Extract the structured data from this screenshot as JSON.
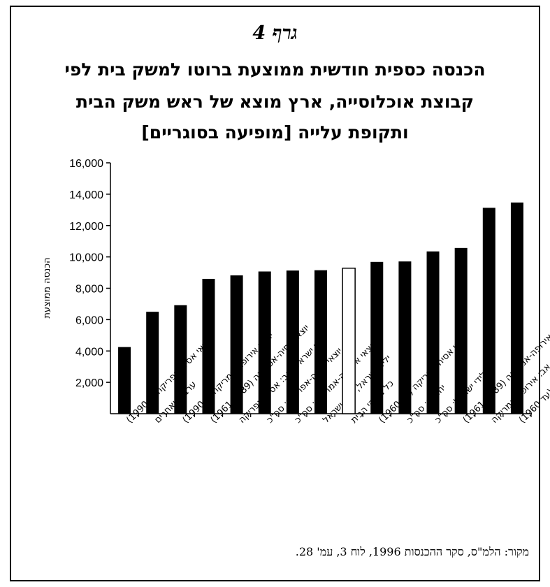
{
  "header": {
    "figure_number": "גרף 4",
    "title_lines": [
      "הכנסה כספית חודשית ממוצעת ברוטו למשק בית לפי",
      "קבוצת אוכלוסייה, ארץ מוצא של ראש משק הבית",
      "ותקופת עלייה [מופיעה בסוגריים]"
    ]
  },
  "chart_data": {
    "type": "bar",
    "title": "הכנסה כספית חודשית ממוצעת ברוטו למשק בית לפי קבוצת אוכלוסייה, ארץ מוצא של ראש משק הבית ותקופת עלייה [מופיעה בסוגריים]",
    "xlabel": "",
    "ylabel": "הכנסה ממוצעת",
    "ylim": [
      0,
      16000
    ],
    "yticks": [
      "2,000",
      "4,000",
      "6,000",
      "8,000",
      "10,000",
      "12,000",
      "14,000",
      "16,000"
    ],
    "grid": false,
    "legend": "none",
    "categories": [
      "יוצאי אסיה-אפריקה (+1990)",
      "ערבים ואחרים",
      "יוצאי אירופה-אמריקה (+1990)",
      "יוצאי אסיה-אפריקה (1961-1989)",
      "ילידי ישראל, אב: אסיה-אפריקה",
      "יוצאי אסיה-אפריקה: סה\"כ",
      "יוצאי אירופה-אמריקה: סה\"כ",
      "ילידי ישראל, אב: ישראל",
      "כל משקי הבית",
      "יוצאי אסיה-אפריקה (עד 1960)",
      "יהודים: סה\"כ",
      "ילידי ישראל: סה\"כ",
      "יוצאי אירופה-אמריקה (1961-1989)",
      "ילידי ישראל, אב: אירופה-אמריקה",
      "יוצאי אירופה-אמריקה (עד 1960)"
    ],
    "values": [
      4250,
      6500,
      6920,
      8600,
      8820,
      9070,
      9130,
      9150,
      9280,
      9680,
      9710,
      10350,
      10570,
      13130,
      13470
    ],
    "highlight_index": 8,
    "colors": {
      "bar": "#000000",
      "highlight_fill": "#ffffff",
      "axis": "#000000"
    }
  },
  "footer": {
    "source": "מקור: הלמ\"ס, סקר ההכנסות 1996, לוח 3, עמ' 28."
  }
}
